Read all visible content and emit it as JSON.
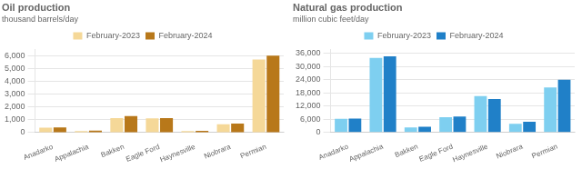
{
  "chart_data": [
    {
      "type": "bar",
      "title": "Oil production",
      "subtitle": "thousand barrels/day",
      "categories": [
        "Anadarko",
        "Appalachia",
        "Bakken",
        "Eagle Ford",
        "Haynesville",
        "Niobrara",
        "Permian"
      ],
      "series": [
        {
          "name": "February-2023",
          "color": "#f5d898",
          "values": [
            380,
            120,
            1130,
            1100,
            110,
            640,
            5680
          ]
        },
        {
          "name": "February-2024",
          "color": "#b8781a",
          "values": [
            400,
            150,
            1280,
            1120,
            130,
            710,
            5980
          ]
        }
      ],
      "ylim": [
        0,
        6500
      ],
      "yticks": [
        0,
        {
          "value": 1000,
          "label": "1,000"
        },
        {
          "value": 2000,
          "label": "2,000"
        },
        {
          "value": 3000,
          "label": "3,000"
        },
        {
          "value": 4000,
          "label": "4,000"
        },
        {
          "value": 5000,
          "label": "5,000"
        },
        {
          "value": 6000,
          "label": "6,000"
        }
      ],
      "grid": true,
      "legend": "top"
    },
    {
      "type": "bar",
      "title": "Natural gas production",
      "subtitle": "million cubic feet/day",
      "categories": [
        "Anadarko",
        "Appalachia",
        "Bakken",
        "Eagle Ford",
        "Haynesville",
        "Niobrara",
        "Permian"
      ],
      "series": [
        {
          "name": "February-2023",
          "color": "#7ecff0",
          "values": [
            6200,
            34000,
            2200,
            6900,
            16500,
            3900,
            20500
          ]
        },
        {
          "name": "February-2024",
          "color": "#2080c8",
          "values": [
            6300,
            34700,
            2600,
            7200,
            15200,
            4800,
            24000
          ]
        }
      ],
      "ylim": [
        0,
        38000
      ],
      "yticks": [
        0,
        {
          "value": 6000,
          "label": "6,000"
        },
        {
          "value": 12000,
          "label": "12,000"
        },
        {
          "value": 18000,
          "label": "18,000"
        },
        {
          "value": 24000,
          "label": "24,000"
        },
        {
          "value": 30000,
          "label": "30,000"
        },
        {
          "value": 36000,
          "label": "36,000"
        }
      ],
      "grid": true,
      "legend": "top"
    }
  ]
}
